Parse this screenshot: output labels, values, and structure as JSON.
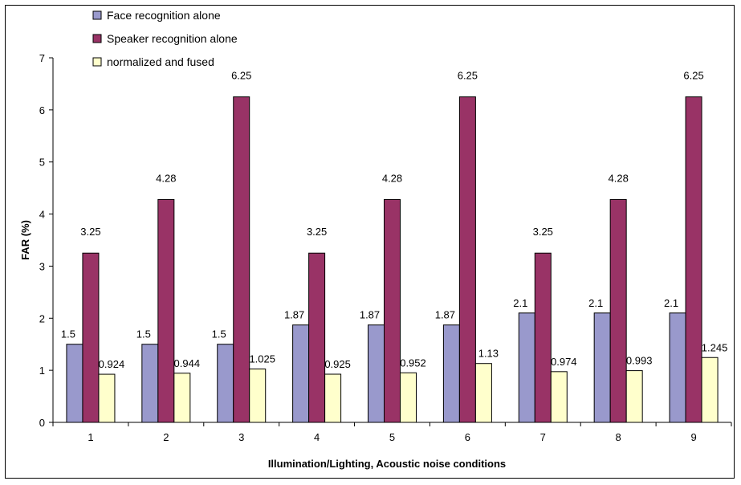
{
  "chart_data": {
    "type": "bar",
    "title": "",
    "xlabel": "Illumination/Lighting, Acoustic noise conditions",
    "ylabel": "FAR (%)",
    "ylim": [
      0,
      7
    ],
    "yticks": [
      "0",
      "1",
      "2",
      "3",
      "4",
      "5",
      "6",
      "7"
    ],
    "grid": false,
    "legend_position": "top-left",
    "categories": [
      "1",
      "2",
      "3",
      "4",
      "5",
      "6",
      "7",
      "8",
      "9"
    ],
    "series": [
      {
        "name": "Face recognition alone",
        "color": "#9999CC",
        "values": [
          1.5,
          1.5,
          1.5,
          1.87,
          1.87,
          1.87,
          2.1,
          2.1,
          2.1
        ],
        "labels": [
          "1.5",
          "1.5",
          "1.5",
          "1.87",
          "1.87",
          "1.87",
          "2.1",
          "2.1",
          "2.1"
        ]
      },
      {
        "name": "Speaker recognition alone",
        "color": "#993366",
        "values": [
          3.25,
          4.28,
          6.25,
          3.25,
          4.28,
          6.25,
          3.25,
          4.28,
          6.25
        ],
        "labels": [
          "3.25",
          "4.28",
          "6.25",
          "3.25",
          "4.28",
          "6.25",
          "3.25",
          "4.28",
          "6.25"
        ]
      },
      {
        "name": "normalized and fused",
        "color": "#FFFFCC",
        "values": [
          0.924,
          0.944,
          1.025,
          0.925,
          0.952,
          1.13,
          0.974,
          0.993,
          1.245
        ],
        "labels": [
          "0.924",
          "0.944",
          "1.025",
          "0.925",
          "0.952",
          "1.13",
          "0.974",
          "0.993",
          "1.245"
        ]
      }
    ]
  }
}
